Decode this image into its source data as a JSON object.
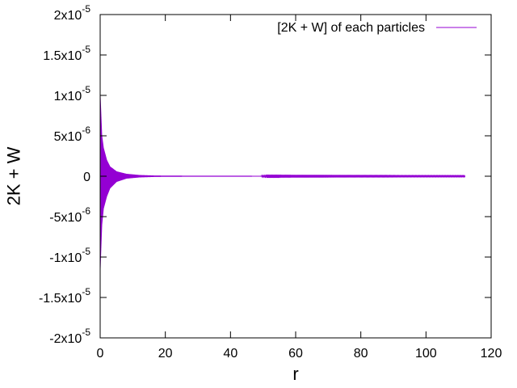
{
  "chart_data": {
    "type": "line",
    "title": "",
    "xlabel": "r",
    "ylabel": "2K + W",
    "xlim": [
      0,
      120
    ],
    "ylim": [
      -2e-05,
      2e-05
    ],
    "grid": false,
    "legend_position": "top-right",
    "x_ticks": [
      {
        "value": 0,
        "label": "0"
      },
      {
        "value": 20,
        "label": "20"
      },
      {
        "value": 40,
        "label": "40"
      },
      {
        "value": 60,
        "label": "60"
      },
      {
        "value": 80,
        "label": "80"
      },
      {
        "value": 100,
        "label": "100"
      },
      {
        "value": 120,
        "label": "120"
      }
    ],
    "y_ticks": [
      {
        "value": 2e-05,
        "mant": "2x10",
        "exp": "-5"
      },
      {
        "value": 1.5e-05,
        "mant": "1.5x10",
        "exp": "-5"
      },
      {
        "value": 1e-05,
        "mant": "1x10",
        "exp": "-5"
      },
      {
        "value": 5e-06,
        "mant": "5x10",
        "exp": "-6"
      },
      {
        "value": 0,
        "mant": "0",
        "exp": ""
      },
      {
        "value": -5e-06,
        "mant": "-5x10",
        "exp": "-6"
      },
      {
        "value": -1e-05,
        "mant": "-1x10",
        "exp": "-5"
      },
      {
        "value": -1.5e-05,
        "mant": "-1.5x10",
        "exp": "-5"
      },
      {
        "value": -2e-05,
        "mant": "-2x10",
        "exp": "-5"
      }
    ],
    "series": [
      {
        "name": "[2K + W] of each particles",
        "color": "#9400d3",
        "x_range": [
          0,
          112
        ],
        "amplitude_envelope": [
          {
            "x": 0.0,
            "upper": 1e-05,
            "lower": -1.15e-05
          },
          {
            "x": 0.5,
            "upper": 5e-06,
            "lower": -6e-06
          },
          {
            "x": 1.0,
            "upper": 3.5e-06,
            "lower": -4e-06
          },
          {
            "x": 2.0,
            "upper": 2e-06,
            "lower": -2.5e-06
          },
          {
            "x": 3.0,
            "upper": 1.2e-06,
            "lower": -1.5e-06
          },
          {
            "x": 5.0,
            "upper": 6e-07,
            "lower": -7e-07
          },
          {
            "x": 8.0,
            "upper": 3e-07,
            "lower": -3e-07
          },
          {
            "x": 12.0,
            "upper": 1.5e-07,
            "lower": -1.5e-07
          },
          {
            "x": 17.0,
            "upper": 8e-08,
            "lower": -8e-08
          },
          {
            "x": 30.0,
            "upper": 5e-08,
            "lower": -5e-08
          },
          {
            "x": 60.0,
            "upper": 4e-08,
            "lower": -4e-08
          },
          {
            "x": 88.0,
            "upper": 4e-08,
            "lower": -4e-08
          },
          {
            "x": 112.0,
            "upper": 4e-08,
            "lower": -4e-08
          }
        ]
      }
    ]
  }
}
